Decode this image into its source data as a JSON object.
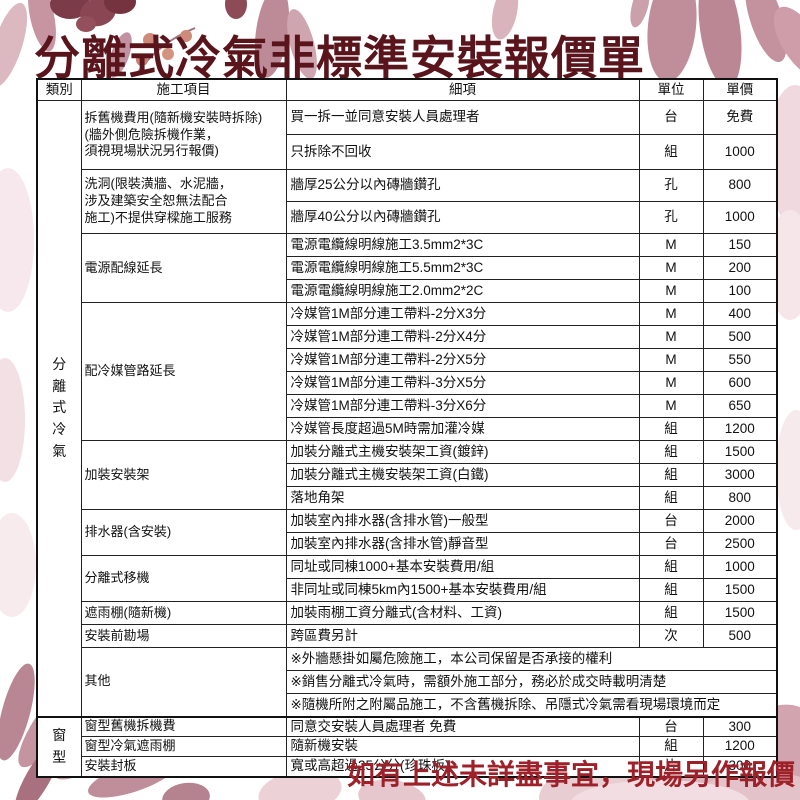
{
  "title": "分離式冷氣非標準安裝報價單",
  "footer_note": "如有上述未詳盡事宜，現場另作報價",
  "colors": {
    "title": "#5a141c",
    "footer_note": "#9e2029",
    "table_border": "#111111",
    "text": "#111111",
    "leaf_dusty_rose": "#c08e9b",
    "leaf_mauve": "#b57f8e",
    "flower_dark_maroon": "#7c3b49",
    "petal_light_pink": "#e8cdd3"
  },
  "table": {
    "headers": [
      "類別",
      "施工項目",
      "細項",
      "單位",
      "單價"
    ],
    "sections": [
      {
        "category": "分\n離\n式\n冷\n氣",
        "category_label": "分離式冷氣",
        "groups": [
          {
            "item": "拆舊機費用(隨新機安裝時拆除)\n(牆外側危險拆機作業，\n須視現場狀況另行報價)",
            "rows": [
              {
                "detail": "買一拆一並同意安裝人員處理者",
                "unit": "台",
                "price": "免費"
              },
              {
                "detail": "只拆除不回收",
                "unit": "組",
                "price": "1000"
              }
            ]
          },
          {
            "item": "洗洞(限裝潢牆、水泥牆，\n涉及建築安全恕無法配合\n施工)不提供穿樑施工服務",
            "rows": [
              {
                "detail": "牆厚25公分以內磚牆鑽孔",
                "unit": "孔",
                "price": "800"
              },
              {
                "detail": "牆厚40公分以內磚牆鑽孔",
                "unit": "孔",
                "price": "1000"
              }
            ]
          },
          {
            "item": "電源配線延長",
            "rows": [
              {
                "detail": "電源電纜線明線施工3.5mm2*3C",
                "unit": "M",
                "price": "150"
              },
              {
                "detail": "電源電纜線明線施工5.5mm2*3C",
                "unit": "M",
                "price": "200"
              },
              {
                "detail": "電源電纜線明線施工2.0mm2*2C",
                "unit": "M",
                "price": "100"
              }
            ]
          },
          {
            "item": "配冷媒管路延長",
            "rows": [
              {
                "detail": "冷媒管1M部分連工帶料-2分X3分",
                "unit": "M",
                "price": "400"
              },
              {
                "detail": "冷媒管1M部分連工帶料-2分X4分",
                "unit": "M",
                "price": "500"
              },
              {
                "detail": "冷媒管1M部分連工帶料-2分X5分",
                "unit": "M",
                "price": "550"
              },
              {
                "detail": "冷媒管1M部分連工帶料-3分X5分",
                "unit": "M",
                "price": "600"
              },
              {
                "detail": "冷媒管1M部分連工帶料-3分X6分",
                "unit": "M",
                "price": "650"
              },
              {
                "detail": "冷媒管長度超過5M時需加灌冷媒",
                "unit": "組",
                "price": "1200"
              }
            ]
          },
          {
            "item": "加裝安裝架",
            "rows": [
              {
                "detail": "加裝分離式主機安裝架工資(鍍鋅)",
                "unit": "組",
                "price": "1500"
              },
              {
                "detail": "加裝分離式主機安裝架工資(白鐵)",
                "unit": "組",
                "price": "3000"
              },
              {
                "detail": "落地角架",
                "unit": "組",
                "price": "800"
              }
            ]
          },
          {
            "item": "排水器(含安裝)",
            "rows": [
              {
                "detail": "加裝室內排水器(含排水管)一般型",
                "unit": "台",
                "price": "2000"
              },
              {
                "detail": "加裝室內排水器(含排水管)靜音型",
                "unit": "台",
                "price": "2500"
              }
            ]
          },
          {
            "item": "分離式移機",
            "rows": [
              {
                "detail": "同址或同棟1000+基本安裝費用/組",
                "unit": "組",
                "price": "1000"
              },
              {
                "detail": "非同址或同棟5km內1500+基本安裝費用/組",
                "unit": "組",
                "price": "1500"
              }
            ]
          },
          {
            "item": "遮雨棚(隨新機)",
            "rows": [
              {
                "detail": "加裝雨棚工資分離式(含材料、工資)",
                "unit": "組",
                "price": "1500"
              }
            ]
          },
          {
            "item": "安裝前勘場",
            "rows": [
              {
                "detail": "跨區費另計",
                "unit": "次",
                "price": "500"
              }
            ]
          },
          {
            "item": "其他",
            "rows": [
              {
                "detail": "※外牆懸掛如屬危險施工，本公司保留是否承接的權利",
                "span": true
              },
              {
                "detail": "※銷售分離式冷氣時，需額外施工部分，務必於成交時載明清楚",
                "span": true
              },
              {
                "detail": "※隨機所附之附屬品施工，不含舊機拆除、吊隱式冷氣需看現場環境而定",
                "span": true
              }
            ]
          }
        ]
      },
      {
        "category": "窗\n型",
        "category_label": "窗型",
        "groups": [
          {
            "item": "窗型舊機拆機費",
            "rows": [
              {
                "detail": "同意交安裝人員處理者 免費",
                "unit": "台",
                "price": "300"
              }
            ]
          },
          {
            "item": "窗型冷氣遮雨棚",
            "rows": [
              {
                "detail": "隨新機安裝",
                "unit": "組",
                "price": "1200"
              }
            ]
          },
          {
            "item": "安裝封板",
            "rows": [
              {
                "detail": "寬或高超過25公分(珍珠板)",
                "unit": "片",
                "price": "300"
              }
            ]
          }
        ]
      }
    ]
  }
}
